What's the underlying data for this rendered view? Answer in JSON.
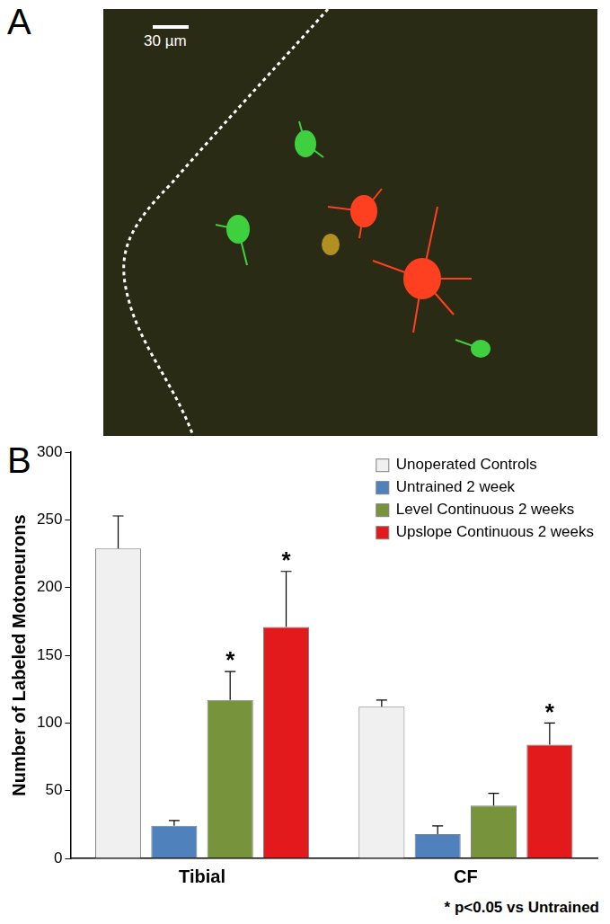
{
  "panels": [
    {
      "label": "A",
      "scale_bar": "30 µm"
    },
    {
      "label": "B"
    }
  ],
  "chart_data": {
    "type": "bar",
    "categories": [
      "Tibial",
      "CF"
    ],
    "series": [
      {
        "name": "Unoperated Controls",
        "color": "#f0f0f0",
        "values": [
          229,
          112
        ],
        "errors": [
          24,
          5
        ]
      },
      {
        "name": "Untrained 2 week",
        "color": "#4f81bd",
        "values": [
          24,
          18
        ],
        "errors": [
          4,
          6
        ]
      },
      {
        "name": "Level Continuous 2 weeks",
        "color": "#77933c",
        "values": [
          117,
          39
        ],
        "errors": [
          21,
          9
        ]
      },
      {
        "name": "Upslope Continuous 2 weeks",
        "color": "#e31a1c",
        "values": [
          171,
          84
        ],
        "errors": [
          41,
          16
        ]
      }
    ],
    "y_label": "Number of Labeled Motoneurons",
    "ylim": [
      0,
      300
    ],
    "yticks": [
      0,
      50,
      100,
      150,
      200,
      250,
      300
    ],
    "grid": false,
    "legend": "upper right",
    "annotations": [
      {
        "text": "*",
        "category": "Tibial",
        "series": "Level Continuous 2 weeks"
      },
      {
        "text": "*",
        "category": "Tibial",
        "series": "Upslope Continuous 2 weeks"
      },
      {
        "text": "*",
        "category": "CF",
        "series": "Upslope Continuous 2 weeks"
      }
    ],
    "footnote": "* p<0.05 vs Untrained"
  }
}
